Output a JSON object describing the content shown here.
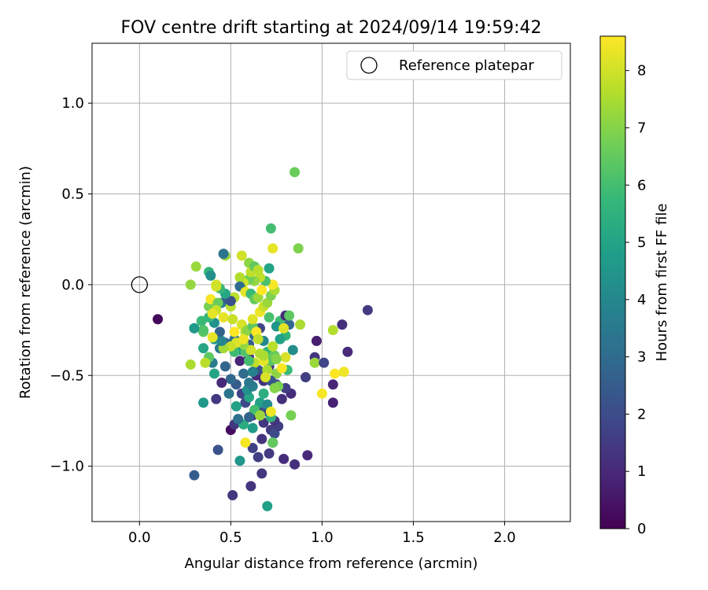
{
  "chart_data": {
    "type": "scatter",
    "title": "FOV centre drift starting at 2024/09/14 19:59:42",
    "xlabel": "Angular distance from reference (arcmin)",
    "ylabel": "Rotation from reference (arcmin)",
    "xlim": [
      -0.26,
      2.36
    ],
    "ylim": [
      -1.305,
      1.33
    ],
    "xticks": [
      0.0,
      0.5,
      1.0,
      1.5,
      2.0
    ],
    "xtick_labels": [
      "0.0",
      "0.5",
      "1.0",
      "1.5",
      "2.0"
    ],
    "yticks": [
      -1.0,
      -0.5,
      0.0,
      0.5,
      1.0
    ],
    "ytick_labels": [
      "−1.0",
      "−0.5",
      "0.0",
      "0.5",
      "1.0"
    ],
    "grid": true,
    "legend": {
      "position": "top-right",
      "entries": [
        {
          "label": "Reference platepar",
          "marker": "open-circle",
          "x": 0.0,
          "y": 0.0
        }
      ]
    },
    "colorbar": {
      "label": "Hours from first FF file",
      "min": 0,
      "max": 8.6,
      "ticks": [
        0,
        1,
        2,
        3,
        4,
        5,
        6,
        7,
        8
      ],
      "tick_labels": [
        "0",
        "1",
        "2",
        "3",
        "4",
        "5",
        "6",
        "7",
        "8"
      ],
      "colormap": "viridis",
      "colors": [
        "#440154",
        "#482878",
        "#3e4989",
        "#31688e",
        "#26828e",
        "#1f9e89",
        "#35b779",
        "#6ece58",
        "#b5de2b",
        "#fde725"
      ]
    },
    "points": [
      [
        0.1,
        -0.19,
        0.2
      ],
      [
        0.5,
        -0.8,
        0.3
      ],
      [
        0.51,
        -1.16,
        1.4
      ],
      [
        0.61,
        -1.11,
        1.3
      ],
      [
        0.67,
        -1.04,
        1.4
      ],
      [
        0.85,
        -0.99,
        1.2
      ],
      [
        0.92,
        -0.94,
        1.0
      ],
      [
        0.79,
        -0.96,
        1.1
      ],
      [
        0.71,
        -0.93,
        1.5
      ],
      [
        0.65,
        -0.95,
        1.6
      ],
      [
        0.73,
        -0.87,
        1.8
      ],
      [
        0.62,
        -0.9,
        1.7
      ],
      [
        0.67,
        -0.85,
        1.3
      ],
      [
        0.72,
        -0.8,
        1.5
      ],
      [
        0.74,
        -0.82,
        2.0
      ],
      [
        0.76,
        -0.78,
        1.6
      ],
      [
        0.68,
        -0.76,
        1.4
      ],
      [
        0.7,
        -0.7,
        1.8
      ],
      [
        0.62,
        -0.72,
        1.2
      ],
      [
        0.65,
        -0.68,
        2.1
      ],
      [
        0.58,
        -0.65,
        1.9
      ],
      [
        0.56,
        -0.6,
        1.7
      ],
      [
        0.74,
        -0.75,
        1.3
      ],
      [
        0.78,
        -0.63,
        1.2
      ],
      [
        0.83,
        -0.6,
        1.1
      ],
      [
        0.8,
        -0.57,
        1.6
      ],
      [
        0.75,
        -0.55,
        1.5
      ],
      [
        0.68,
        -0.53,
        1.3
      ],
      [
        0.66,
        -0.48,
        1.4
      ],
      [
        0.71,
        -0.45,
        1.2
      ],
      [
        0.64,
        -0.5,
        1.0
      ],
      [
        0.6,
        -0.4,
        1.1
      ],
      [
        0.55,
        -0.42,
        0.9
      ],
      [
        0.53,
        -0.55,
        2.5
      ],
      [
        0.5,
        -0.52,
        2.9
      ],
      [
        0.45,
        -0.54,
        1.0
      ],
      [
        0.42,
        -0.63,
        1.5
      ],
      [
        0.43,
        -0.91,
        2.2
      ],
      [
        0.3,
        -1.05,
        2.5
      ],
      [
        0.55,
        -0.97,
        4.5
      ],
      [
        0.52,
        -0.77,
        1.4
      ],
      [
        0.49,
        -0.6,
        3.3
      ],
      [
        0.53,
        -0.67,
        4.9
      ],
      [
        0.6,
        -0.62,
        5.1
      ],
      [
        0.59,
        -0.58,
        4.3
      ],
      [
        0.62,
        -0.56,
        3.7
      ],
      [
        0.57,
        -0.49,
        3.0
      ],
      [
        0.47,
        -0.45,
        2.8
      ],
      [
        0.4,
        -0.43,
        3.6
      ],
      [
        0.41,
        -0.49,
        5.0
      ],
      [
        0.38,
        -0.4,
        5.5
      ],
      [
        0.35,
        -0.35,
        5.1
      ],
      [
        0.34,
        -0.2,
        5.8
      ],
      [
        0.3,
        -0.24,
        5.3
      ],
      [
        0.35,
        -0.26,
        6.4
      ],
      [
        0.41,
        -0.3,
        4.6
      ],
      [
        0.44,
        -0.35,
        3.5
      ],
      [
        0.47,
        -0.32,
        2.8
      ],
      [
        0.52,
        -0.3,
        3.3
      ],
      [
        0.55,
        -0.36,
        4.4
      ],
      [
        0.52,
        -0.37,
        5.9
      ],
      [
        0.58,
        -0.37,
        6.2
      ],
      [
        0.6,
        -0.33,
        2.5
      ],
      [
        0.63,
        -0.28,
        3.0
      ],
      [
        0.66,
        -0.24,
        1.8
      ],
      [
        0.68,
        -0.31,
        4.0
      ],
      [
        0.7,
        -0.37,
        5.7
      ],
      [
        0.72,
        -0.42,
        6.3
      ],
      [
        0.74,
        -0.39,
        6.6
      ],
      [
        0.77,
        -0.2,
        5.9
      ],
      [
        0.75,
        -0.23,
        4.5
      ],
      [
        0.71,
        -0.18,
        6.1
      ],
      [
        0.8,
        -0.17,
        1.1
      ],
      [
        0.82,
        -0.22,
        2.8
      ],
      [
        0.8,
        -0.28,
        5.6
      ],
      [
        0.84,
        -0.36,
        4.2
      ],
      [
        0.81,
        -0.47,
        5.8
      ],
      [
        0.75,
        -0.49,
        7.1
      ],
      [
        0.76,
        -0.56,
        6.8
      ],
      [
        0.68,
        -0.6,
        5.4
      ],
      [
        0.66,
        -0.65,
        4.9
      ],
      [
        0.63,
        -0.69,
        6.0
      ],
      [
        0.7,
        -0.66,
        4.1
      ],
      [
        0.72,
        -0.73,
        5.5
      ],
      [
        0.62,
        -0.79,
        4.7
      ],
      [
        0.57,
        -0.77,
        5.3
      ],
      [
        0.54,
        -0.74,
        3.2
      ],
      [
        0.6,
        -0.73,
        2.7
      ],
      [
        0.7,
        -1.22,
        4.9
      ],
      [
        0.73,
        -0.87,
        6.5
      ],
      [
        0.58,
        -0.87,
        8.5
      ],
      [
        0.72,
        -0.7,
        8.4
      ],
      [
        0.66,
        -0.72,
        7.3
      ],
      [
        0.6,
        -0.54,
        3.4
      ],
      [
        0.65,
        -0.47,
        2.2
      ],
      [
        0.63,
        -0.43,
        7.8
      ],
      [
        0.68,
        -0.42,
        8.3
      ],
      [
        0.7,
        -0.47,
        7.5
      ],
      [
        0.72,
        -0.53,
        2.3
      ],
      [
        0.74,
        -0.57,
        7.0
      ],
      [
        0.69,
        -0.51,
        8.1
      ],
      [
        0.66,
        -0.38,
        7.6
      ],
      [
        0.61,
        -0.36,
        8.0
      ],
      [
        0.57,
        -0.33,
        7.2
      ],
      [
        0.53,
        -0.32,
        8.2
      ],
      [
        0.5,
        -0.34,
        7.9
      ],
      [
        0.46,
        -0.35,
        7.4
      ],
      [
        0.45,
        -0.31,
        4.0
      ],
      [
        0.44,
        -0.26,
        2.7
      ],
      [
        0.41,
        -0.21,
        4.4
      ],
      [
        0.38,
        -0.18,
        5.7
      ],
      [
        0.38,
        -0.12,
        6.8
      ],
      [
        0.39,
        -0.08,
        8.5
      ],
      [
        0.45,
        -0.1,
        3.5
      ],
      [
        0.48,
        -0.08,
        2.6
      ],
      [
        0.5,
        -0.12,
        7.7
      ],
      [
        0.46,
        -0.18,
        8.3
      ],
      [
        0.51,
        -0.19,
        7.9
      ],
      [
        0.52,
        -0.26,
        8.6
      ],
      [
        0.56,
        -0.22,
        8.1
      ],
      [
        0.58,
        -0.26,
        7.6
      ],
      [
        0.57,
        -0.3,
        8.4
      ],
      [
        0.59,
        -0.25,
        7.1
      ],
      [
        0.62,
        -0.23,
        6.4
      ],
      [
        0.62,
        -0.19,
        8.2
      ],
      [
        0.64,
        -0.26,
        8.6
      ],
      [
        0.65,
        -0.3,
        7.8
      ],
      [
        0.66,
        -0.15,
        8.4
      ],
      [
        0.68,
        -0.12,
        7.9
      ],
      [
        0.7,
        -0.1,
        7.3
      ],
      [
        0.72,
        -0.06,
        6.9
      ],
      [
        0.74,
        -0.03,
        7.5
      ],
      [
        0.73,
        0.0,
        8.5
      ],
      [
        0.69,
        0.02,
        6.1
      ],
      [
        0.66,
        0.04,
        7.8
      ],
      [
        0.63,
        0.02,
        7.2
      ],
      [
        0.6,
        0.03,
        6.7
      ],
      [
        0.57,
        0.01,
        8.0
      ],
      [
        0.55,
        0.04,
        7.6
      ],
      [
        0.55,
        -0.01,
        3.0
      ],
      [
        0.58,
        -0.04,
        8.3
      ],
      [
        0.61,
        -0.05,
        5.8
      ],
      [
        0.63,
        -0.08,
        6.5
      ],
      [
        0.65,
        -0.07,
        7.3
      ],
      [
        0.67,
        -0.03,
        8.6
      ],
      [
        0.52,
        -0.07,
        7.7
      ],
      [
        0.5,
        -0.09,
        2.2
      ],
      [
        0.47,
        -0.05,
        5.1
      ],
      [
        0.44,
        -0.02,
        5.8
      ],
      [
        0.43,
        -0.1,
        6.6
      ],
      [
        0.42,
        -0.14,
        7.9
      ],
      [
        0.4,
        -0.16,
        8.3
      ],
      [
        0.42,
        0.0,
        8.1
      ],
      [
        0.42,
        -0.01,
        8.0
      ],
      [
        0.35,
        -0.25,
        6.2
      ],
      [
        0.3,
        -0.24,
        4.6
      ],
      [
        0.28,
        0.0,
        7.2
      ],
      [
        0.31,
        0.1,
        7.3
      ],
      [
        0.38,
        0.07,
        5.6
      ],
      [
        0.39,
        0.05,
        4.3
      ],
      [
        0.47,
        0.16,
        7.3
      ],
      [
        0.46,
        0.17,
        3.3
      ],
      [
        0.56,
        0.16,
        8.0
      ],
      [
        0.6,
        0.12,
        7.1
      ],
      [
        0.61,
        0.07,
        7.8
      ],
      [
        0.63,
        0.1,
        6.5
      ],
      [
        0.65,
        0.08,
        7.7
      ],
      [
        0.71,
        0.09,
        5.0
      ],
      [
        0.73,
        0.2,
        8.3
      ],
      [
        0.72,
        0.31,
        6.0
      ],
      [
        0.87,
        0.2,
        6.9
      ],
      [
        0.85,
        0.62,
        6.6
      ],
      [
        0.38,
        -0.4,
        6.4
      ],
      [
        0.28,
        -0.44,
        7.5
      ],
      [
        0.36,
        -0.43,
        7.7
      ],
      [
        0.4,
        -0.29,
        8.3
      ],
      [
        0.35,
        -0.65,
        4.6
      ],
      [
        0.6,
        -0.42,
        6.0
      ],
      [
        0.62,
        -0.48,
        3.8
      ],
      [
        0.68,
        -0.39,
        7.5
      ],
      [
        0.78,
        -0.46,
        8.6
      ],
      [
        0.8,
        -0.4,
        8.1
      ],
      [
        0.75,
        -0.41,
        7.0
      ],
      [
        0.73,
        -0.34,
        7.7
      ],
      [
        0.77,
        -0.3,
        4.9
      ],
      [
        0.79,
        -0.24,
        8.2
      ],
      [
        0.82,
        -0.17,
        6.4
      ],
      [
        0.88,
        -0.22,
        7.5
      ],
      [
        0.96,
        -0.4,
        1.3
      ],
      [
        0.96,
        -0.43,
        7.3
      ],
      [
        0.97,
        -0.31,
        0.7
      ],
      [
        1.01,
        -0.43,
        1.8
      ],
      [
        0.91,
        -0.51,
        1.6
      ],
      [
        1.06,
        -0.25,
        7.6
      ],
      [
        1.11,
        -0.22,
        1.2
      ],
      [
        1.14,
        -0.37,
        1.0
      ],
      [
        1.25,
        -0.14,
        1.5
      ],
      [
        1.06,
        -0.55,
        0.9
      ],
      [
        1.07,
        -0.49,
        8.6
      ],
      [
        1.12,
        -0.48,
        8.4
      ],
      [
        1.0,
        -0.6,
        8.5
      ],
      [
        1.06,
        -0.65,
        0.8
      ],
      [
        0.83,
        -0.72,
        6.8
      ]
    ]
  }
}
